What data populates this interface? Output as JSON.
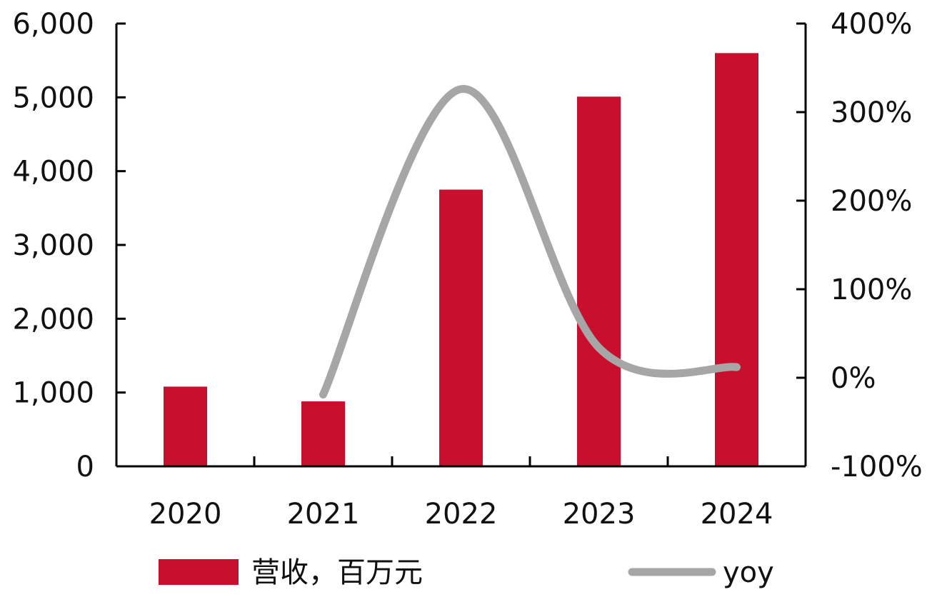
{
  "chart_data": {
    "type": "bar",
    "categories": [
      "2020",
      "2021",
      "2022",
      "2023",
      "2024"
    ],
    "series": [
      {
        "name": "营收，百万元",
        "type": "bar",
        "axis": "left",
        "values": [
          1080,
          880,
          3750,
          5010,
          5600
        ]
      },
      {
        "name": "yoy",
        "type": "line",
        "axis": "right",
        "smooth": true,
        "values": [
          null,
          -19,
          326,
          34,
          12
        ]
      }
    ],
    "y_left": {
      "min": 0,
      "max": 6000,
      "ticks": [
        0,
        1000,
        2000,
        3000,
        4000,
        5000,
        6000
      ],
      "tick_labels": [
        "0",
        "1,000",
        "2,000",
        "3,000",
        "4,000",
        "5,000",
        "6,000"
      ]
    },
    "y_right": {
      "min": -100,
      "max": 400,
      "ticks": [
        -100,
        0,
        100,
        200,
        300,
        400
      ],
      "tick_labels": [
        "-100%",
        "0%",
        "100%",
        "200%",
        "300%",
        "400%"
      ]
    },
    "grid": false,
    "legend_position": "bottom",
    "colors": {
      "bar": "#C8102E",
      "line": "#A6A6A6",
      "axis": "#000000"
    }
  }
}
